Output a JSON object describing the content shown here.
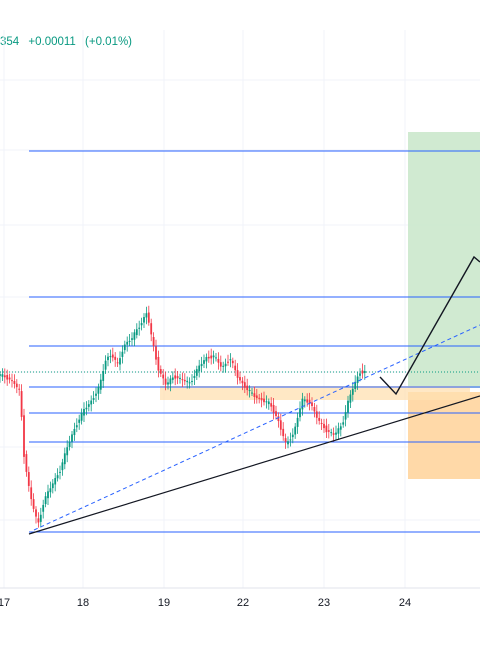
{
  "header": {
    "price_tail": "354",
    "change_abs": "+0.00011",
    "change_pct": "(+0.01%)",
    "change_color": "#089981"
  },
  "chart_data": {
    "type": "candlestick",
    "title": "",
    "xlabel": "",
    "ylabel": "",
    "x_ticks": [
      "17",
      "18",
      "19",
      "22",
      "23",
      "24"
    ],
    "colors": {
      "up": "#089981",
      "down": "#f23645",
      "horizontal_levels": "#2962ff",
      "target_zone": "#c8e6c9",
      "stop_zone": "#ffd59e",
      "support_zone": "#ffe0b2",
      "trendline": "#131722",
      "dashed_channel": "#2962ff",
      "projection": "#131722",
      "grid": "#f0f3fa"
    },
    "annotations": [
      "horizontal support/resistance levels",
      "rising trendline",
      "dashed channel line",
      "horizontal support zone",
      "long position with target and stop zones",
      "projected zig-zag path"
    ],
    "grid": true
  }
}
